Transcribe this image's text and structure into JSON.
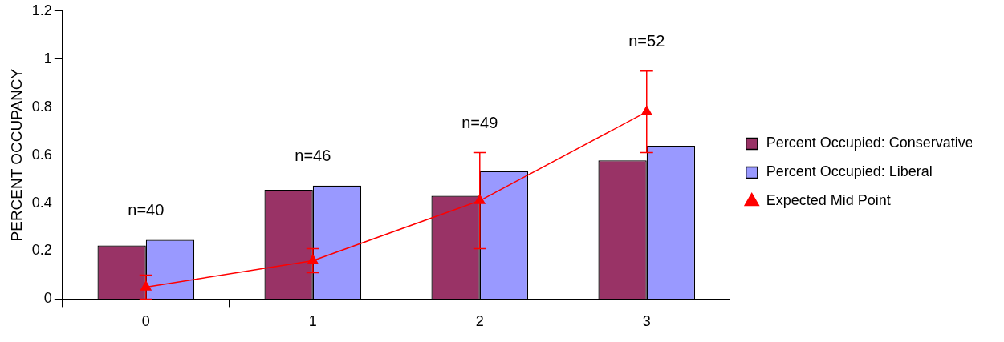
{
  "chart_data": {
    "type": "bar",
    "ylabel": "PERCENT OCCUPANCY",
    "categories": [
      "0",
      "1",
      "2",
      "3"
    ],
    "series": [
      {
        "name": "Percent Occupied: Conservative",
        "color": "#993366",
        "values": [
          0.223,
          0.455,
          0.43,
          0.578
        ]
      },
      {
        "name": "Percent Occupied: Liberal",
        "color": "#9999ff",
        "values": [
          0.247,
          0.473,
          0.533,
          0.639
        ]
      },
      {
        "name": "Expected Mid Point",
        "type": "line",
        "color": "#ff0000",
        "marker": "triangle",
        "values": [
          0.05,
          0.16,
          0.41,
          0.78
        ],
        "errors": [
          0.05,
          0.05,
          0.2,
          0.17
        ]
      }
    ],
    "ylim": [
      0,
      1.2
    ],
    "yticks": [
      0,
      0.2,
      0.4,
      0.6,
      0.8,
      1,
      1.2
    ],
    "grid": false,
    "legend": "right",
    "annotations": [
      "n=40",
      "n=46",
      "n=49",
      "n=52"
    ]
  }
}
